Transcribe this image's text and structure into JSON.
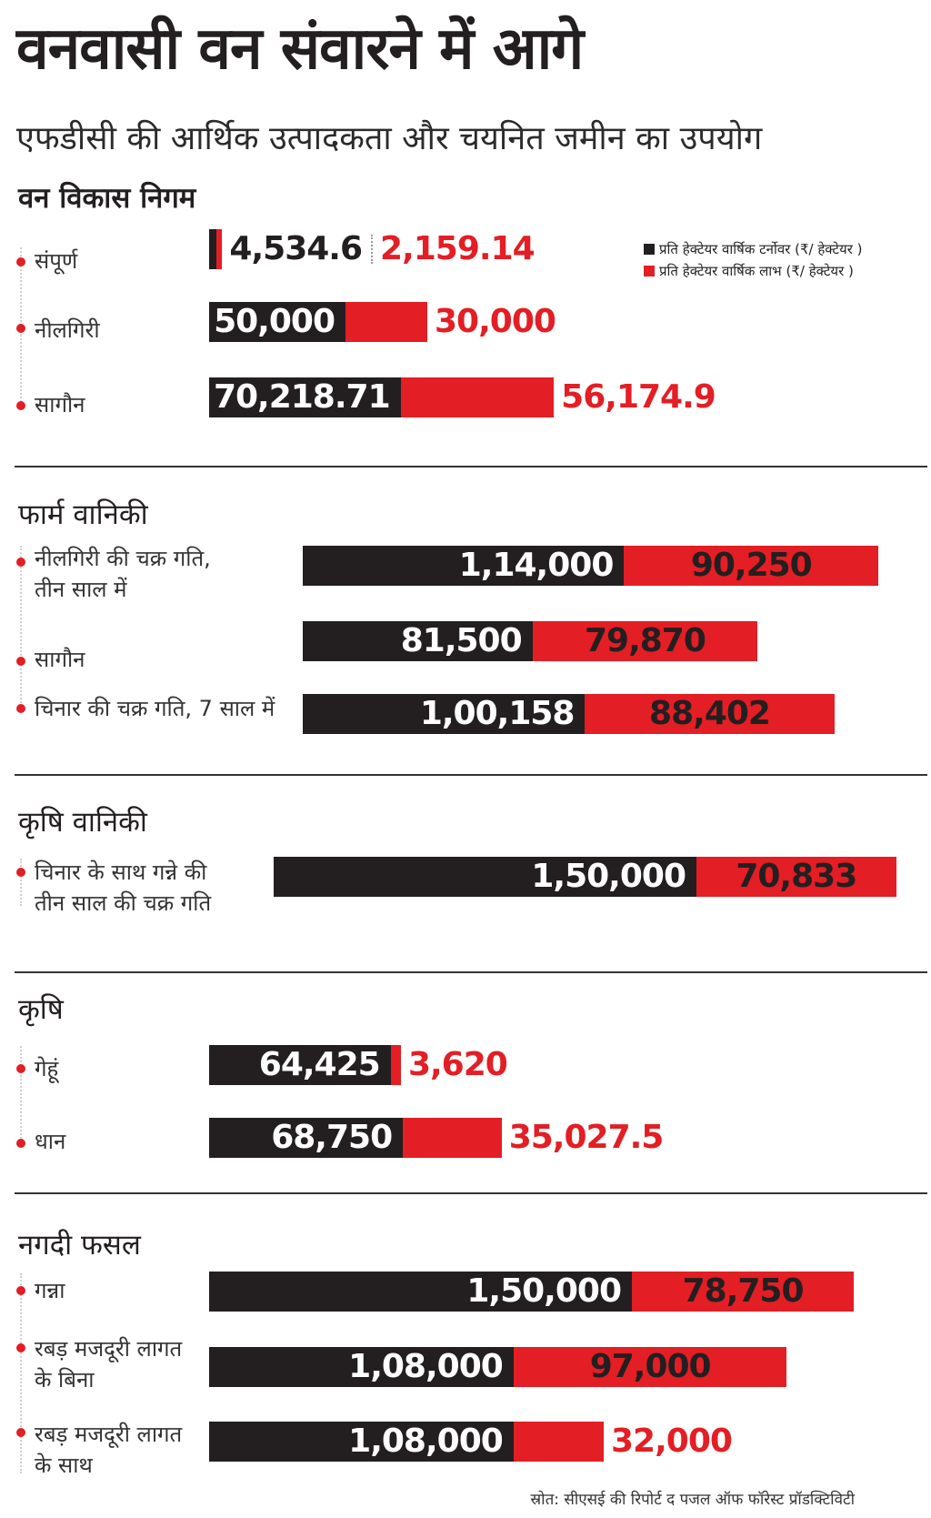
{
  "title": "वनवासी वन संवारने में आगे",
  "subtitle": "एफडीसी की आर्थिक उत्पादकता और चयनित जमीन का उपयोग",
  "legend": [
    {
      "label": "प्रति हेक्टेयर वार्षिक टर्नोवर (₹/ हेक्टेयर )",
      "color": "#231f20"
    },
    {
      "label": "प्रति हेक्टेयर वार्षिक लाभ (₹/ हेक्टेयर )",
      "color": "#e31e24"
    }
  ],
  "source": "स्रोत: सीएसई की रिपोर्ट द पजल ऑफ फॉरेस्ट प्रॉडक्टिविटी",
  "chart_data": {
    "type": "bar",
    "orientation": "horizontal",
    "stacked": true,
    "series": [
      {
        "name": "प्रति हेक्टेयर वार्षिक टर्नोवर (₹/ हेक्टेयर )",
        "color": "#231f20"
      },
      {
        "name": "प्रति हेक्टेयर वार्षिक लाभ (₹/ हेक्टेयर )",
        "color": "#e31e24"
      }
    ],
    "groups": [
      {
        "title": "वन विकास निगम",
        "items": [
          {
            "label": "संपूर्ण",
            "turnover": 4534.6,
            "profit": 2159.14,
            "turnover_text": "4,534.6",
            "profit_text": "2,159.14"
          },
          {
            "label": "नीलगिरी",
            "turnover": 50000,
            "profit": 30000,
            "turnover_text": "50,000",
            "profit_text": "30,000"
          },
          {
            "label": "सागौन",
            "turnover": 70218.71,
            "profit": 56174.9,
            "turnover_text": "70,218.71",
            "profit_text": "56,174.9"
          }
        ]
      },
      {
        "title": "फार्म वानिकी",
        "items": [
          {
            "label": "नीलगिरी की चक्र गति, तीन साल में",
            "lines": [
              "नीलगिरी की चक्र गति,",
              "तीन साल में"
            ],
            "turnover": 114000,
            "profit": 90250,
            "turnover_text": "1,14,000",
            "profit_text": "90,250"
          },
          {
            "label": "सागौन",
            "turnover": 81500,
            "profit": 79870,
            "turnover_text": "81,500",
            "profit_text": "79,870"
          },
          {
            "label": "चिनार की चक्र गति, 7 साल में",
            "turnover": 100158,
            "profit": 88402,
            "turnover_text": "1,00,158",
            "profit_text": "88,402"
          }
        ]
      },
      {
        "title": "कृषि वानिकी",
        "items": [
          {
            "label": "चिनार के साथ गन्ने की तीन साल की चक्र गति",
            "lines": [
              "चिनार के साथ गन्ने की",
              "तीन साल की चक्र गति"
            ],
            "turnover": 150000,
            "profit": 70833,
            "turnover_text": "1,50,000",
            "profit_text": "70,833"
          }
        ]
      },
      {
        "title": "कृषि",
        "items": [
          {
            "label": "गेहूं",
            "turnover": 64425,
            "profit": 3620,
            "turnover_text": "64,425",
            "profit_text": "3,620"
          },
          {
            "label": "धान",
            "turnover": 68750,
            "profit": 35027.5,
            "turnover_text": "68,750",
            "profit_text": "35,027.5"
          }
        ]
      },
      {
        "title": "नगदी फसल",
        "items": [
          {
            "label": "गन्ना",
            "turnover": 150000,
            "profit": 78750,
            "turnover_text": "1,50,000",
            "profit_text": "78,750"
          },
          {
            "label": "रबड़ मजदूरी लागत के बिना",
            "lines": [
              "रबड़ मजदूरी लागत",
              "के बिना"
            ],
            "turnover": 108000,
            "profit": 97000,
            "turnover_text": "1,08,000",
            "profit_text": "97,000"
          },
          {
            "label": "रबड़ मजदूरी लागत के साथ",
            "lines": [
              "रबड़ मजदूरी लागत",
              "के साथ"
            ],
            "turnover": 108000,
            "profit": 32000,
            "turnover_text": "1,08,000",
            "profit_text": "32,000"
          }
        ]
      }
    ]
  }
}
